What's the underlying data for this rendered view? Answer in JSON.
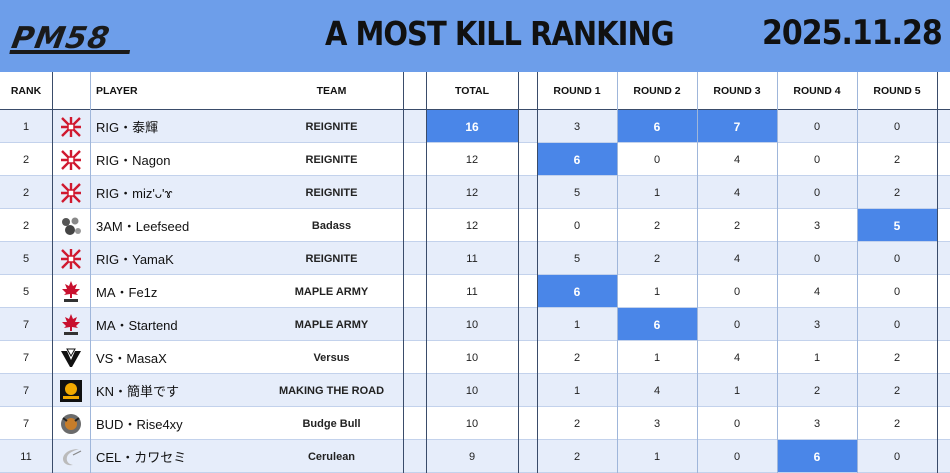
{
  "header": {
    "logo_text": "PM58",
    "title": "A  MOST KILL RANKING",
    "date": "2025.11.28"
  },
  "columns": {
    "rank": "RANK",
    "player": "PLAYER",
    "team": "TEAM",
    "total": "TOTAL",
    "rounds": [
      "ROUND 1",
      "ROUND 2",
      "ROUND 3",
      "ROUND 4",
      "ROUND 5"
    ]
  },
  "colors": {
    "header_bg": "#6d9eea",
    "highlight": "#4a86e8",
    "row_alt": "#e6edfa"
  },
  "rows": [
    {
      "rank": "1",
      "icon": "reignite-logo-icon",
      "player": "RIG・泰輝",
      "team": "REIGNITE",
      "total": "16",
      "rounds": [
        "3",
        "6",
        "7",
        "0",
        "0"
      ],
      "highlights": [
        1,
        2
      ],
      "total_hl": true
    },
    {
      "rank": "2",
      "icon": "reignite-logo-icon",
      "player": "RIG・Nagon",
      "team": "REIGNITE",
      "total": "12",
      "rounds": [
        "6",
        "0",
        "4",
        "0",
        "2"
      ],
      "highlights": [
        0
      ],
      "total_hl": false
    },
    {
      "rank": "2",
      "icon": "reignite-logo-icon",
      "player": "RIG・miz'ᴗ'ɤ",
      "team": "REIGNITE",
      "total": "12",
      "rounds": [
        "5",
        "1",
        "4",
        "0",
        "2"
      ],
      "highlights": [],
      "total_hl": false
    },
    {
      "rank": "2",
      "icon": "badass-logo-icon",
      "player": "3AM・Leefseed",
      "team": "Badass",
      "total": "12",
      "rounds": [
        "0",
        "2",
        "2",
        "3",
        "5"
      ],
      "highlights": [
        4
      ],
      "total_hl": false
    },
    {
      "rank": "5",
      "icon": "reignite-logo-icon",
      "player": "RIG・YamaK",
      "team": "REIGNITE",
      "total": "11",
      "rounds": [
        "5",
        "2",
        "4",
        "0",
        "0"
      ],
      "highlights": [],
      "total_hl": false
    },
    {
      "rank": "5",
      "icon": "maple-army-logo-icon",
      "player": "MA・Fe1z",
      "team": "MAPLE ARMY",
      "total": "11",
      "rounds": [
        "6",
        "1",
        "0",
        "4",
        "0"
      ],
      "highlights": [
        0
      ],
      "total_hl": false
    },
    {
      "rank": "7",
      "icon": "maple-army-logo-icon",
      "player": "MA・Startend",
      "team": "MAPLE ARMY",
      "total": "10",
      "rounds": [
        "1",
        "6",
        "0",
        "3",
        "0"
      ],
      "highlights": [
        1
      ],
      "total_hl": false
    },
    {
      "rank": "7",
      "icon": "versus-logo-icon",
      "player": "VS・MasaX",
      "team": "Versus",
      "total": "10",
      "rounds": [
        "2",
        "1",
        "4",
        "1",
        "2"
      ],
      "highlights": [],
      "total_hl": false
    },
    {
      "rank": "7",
      "icon": "making-the-road-logo-icon",
      "player": "KN・簡単です",
      "team": "MAKING THE ROAD",
      "total": "10",
      "rounds": [
        "1",
        "4",
        "1",
        "2",
        "2"
      ],
      "highlights": [],
      "total_hl": false
    },
    {
      "rank": "7",
      "icon": "budge-bull-logo-icon",
      "player": "BUD・Rise4xy",
      "team": "Budge Bull",
      "total": "10",
      "rounds": [
        "2",
        "3",
        "0",
        "3",
        "2"
      ],
      "highlights": [],
      "total_hl": false
    },
    {
      "rank": "11",
      "icon": "cerulean-logo-icon",
      "player": "CEL・カワセミ",
      "team": "Cerulean",
      "total": "9",
      "rounds": [
        "2",
        "1",
        "0",
        "6",
        "0"
      ],
      "highlights": [
        3
      ],
      "total_hl": false
    }
  ]
}
